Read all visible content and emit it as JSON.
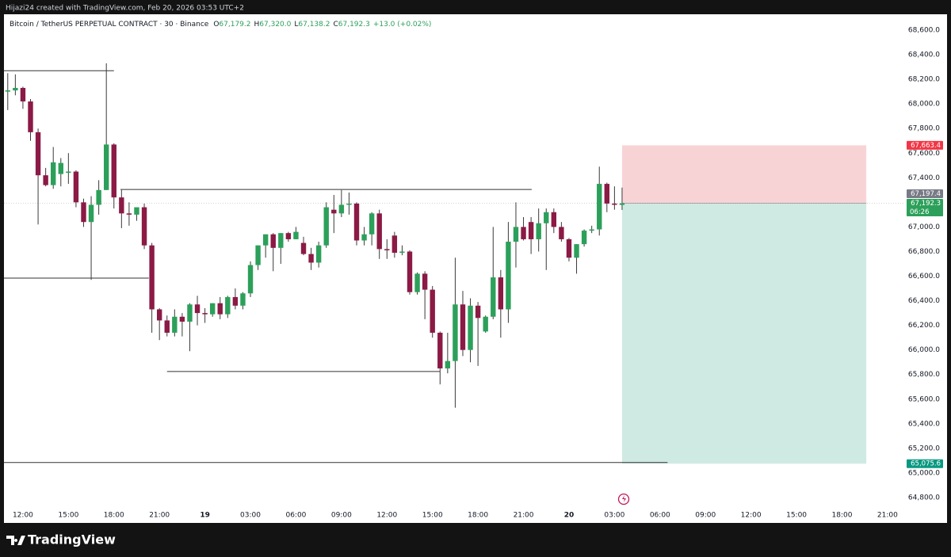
{
  "banner": "Hijazi24 created with TradingView.com, Feb 20, 2026 03:53 UTC+2",
  "footer": "TradingView",
  "chart_data": {
    "type": "candlestick",
    "title": "Bitcoin / TetherUS PERPETUAL CONTRACT · 30 · Binance",
    "ohlc_legend": [
      {
        "key": "O",
        "value": "67,179.2"
      },
      {
        "key": "H",
        "value": "67,320.0"
      },
      {
        "key": "L",
        "value": "67,138.2"
      },
      {
        "key": "C",
        "value": "67,192.3"
      }
    ],
    "change": "+13.0 (+0.02%)",
    "up_color": "#2ca05a",
    "down_color": "#8b1a45",
    "wick_color": "#3a3a3a",
    "x": [
      11,
      11.5,
      12,
      12.5,
      13,
      13.5,
      14,
      14.5,
      15,
      15.5,
      16,
      16.5,
      17,
      17.5,
      18,
      18.5,
      19,
      19.5,
      20,
      20.5,
      21,
      21.5,
      22,
      22.5,
      23,
      23.5,
      24,
      24.5,
      25,
      25.5,
      26,
      26.5,
      27,
      27.5,
      28,
      28.5,
      29,
      29.5,
      30,
      30.5,
      31,
      31.5,
      32,
      32.5,
      33,
      33.5,
      34,
      34.5,
      35,
      35.5,
      36,
      36.5,
      37,
      37.5,
      38,
      38.5,
      39,
      39.5,
      40,
      40.5,
      41,
      41.5,
      42,
      42.5,
      43,
      43.5,
      44,
      44.5,
      45,
      45.5,
      46,
      46.5,
      47,
      47.5,
      48,
      48.5,
      49,
      49.5,
      50,
      50.5,
      51,
      51.5
    ],
    "open": [
      68100,
      68110,
      68130,
      68020,
      67770,
      67420,
      67340,
      67430,
      67440,
      67450,
      67200,
      67040,
      67180,
      67300,
      67670,
      67240,
      67110,
      67100,
      67160,
      66850,
      66330,
      66240,
      66140,
      66270,
      66230,
      66370,
      66300,
      66290,
      66380,
      66290,
      66430,
      66360,
      66460,
      66690,
      66850,
      66940,
      66830,
      66950,
      66900,
      66870,
      66780,
      66710,
      66850,
      67140,
      67110,
      67180,
      67190,
      66890,
      66940,
      67110,
      66820,
      66930,
      66790,
      66800,
      66470,
      66620,
      66490,
      66140,
      65850,
      65910,
      66370,
      66000,
      66360,
      66150,
      66270,
      66590,
      66330,
      66880,
      67000,
      67040,
      66900,
      67030,
      67120,
      67000,
      66900,
      66750,
      66860,
      66970,
      66980,
      67350,
      67190,
      67179.2
    ],
    "high": [
      68250,
      68240,
      68140,
      68040,
      67800,
      67480,
      67650,
      67560,
      67600,
      67460,
      67230,
      67250,
      67380,
      68330,
      67680,
      67300,
      67200,
      67150,
      67190,
      66870,
      66340,
      66280,
      66330,
      66300,
      66380,
      66440,
      66340,
      66380,
      66430,
      66440,
      66500,
      66470,
      66720,
      66850,
      66940,
      66950,
      66950,
      66960,
      67000,
      66920,
      66830,
      66880,
      67200,
      67260,
      67300,
      67280,
      67200,
      67000,
      67120,
      67140,
      66900,
      66960,
      66850,
      66810,
      66630,
      66640,
      66520,
      66150,
      66140,
      66750,
      66480,
      66420,
      66390,
      66280,
      67000,
      66650,
      67040,
      67200,
      67080,
      67080,
      67150,
      67150,
      67150,
      67040,
      66910,
      66860,
      66980,
      67010,
      67490,
      67360,
      67330,
      67320
    ],
    "low": [
      67950,
      68070,
      67960,
      67700,
      67020,
      67330,
      67310,
      67330,
      67350,
      67160,
      67000,
      66570,
      67100,
      67300,
      67150,
      66990,
      67010,
      67050,
      66820,
      66140,
      66080,
      66110,
      66110,
      66110,
      65990,
      66200,
      66220,
      66270,
      66250,
      66260,
      66330,
      66330,
      66430,
      66650,
      66750,
      66640,
      66700,
      66880,
      66900,
      66770,
      66650,
      66670,
      66830,
      66950,
      67080,
      67100,
      66850,
      66850,
      66850,
      66740,
      66740,
      66750,
      66770,
      66450,
      66450,
      66250,
      66100,
      65720,
      65810,
      65530,
      65950,
      65900,
      65870,
      66140,
      66250,
      66100,
      66220,
      66670,
      66890,
      66780,
      66800,
      66650,
      66950,
      66880,
      66720,
      66620,
      66840,
      66950,
      66930,
      67120,
      67140,
      67138.2
    ],
    "close": [
      68110,
      68130,
      68020,
      67770,
      67420,
      67340,
      67525,
      67520,
      67450,
      67200,
      67040,
      67180,
      67300,
      67670,
      67240,
      67110,
      67100,
      67160,
      66850,
      66330,
      66240,
      66140,
      66270,
      66230,
      66370,
      66300,
      66290,
      66380,
      66290,
      66430,
      66360,
      66460,
      66690,
      66850,
      66940,
      66830,
      66950,
      66900,
      66960,
      66780,
      66710,
      66850,
      67160,
      67110,
      67180,
      67190,
      66890,
      66940,
      67110,
      66820,
      66810,
      66790,
      66800,
      66470,
      66620,
      66490,
      66140,
      65850,
      65910,
      66370,
      66000,
      66360,
      66260,
      66270,
      66590,
      66330,
      66880,
      67000,
      66900,
      66900,
      67030,
      67120,
      67000,
      66900,
      66750,
      66860,
      66970,
      66980,
      67350,
      67190,
      67180,
      67192.3
    ],
    "xlim": [
      10.75,
      70.05
    ],
    "xticks": [
      {
        "value": 12,
        "label": "12:00"
      },
      {
        "value": 15,
        "label": "15:00"
      },
      {
        "value": 18,
        "label": "18:00"
      },
      {
        "value": 21,
        "label": "21:00"
      },
      {
        "value": 24,
        "label": "19"
      },
      {
        "value": 27,
        "label": "03:00"
      },
      {
        "value": 30,
        "label": "06:00"
      },
      {
        "value": 33,
        "label": "09:00"
      },
      {
        "value": 36,
        "label": "12:00"
      },
      {
        "value": 39,
        "label": "15:00"
      },
      {
        "value": 42,
        "label": "18:00"
      },
      {
        "value": 45,
        "label": "21:00"
      },
      {
        "value": 48,
        "label": "20"
      },
      {
        "value": 51,
        "label": "03:00"
      },
      {
        "value": 54,
        "label": "06:00"
      },
      {
        "value": 57,
        "label": "09:00"
      },
      {
        "value": 60,
        "label": "12:00"
      },
      {
        "value": 63,
        "label": "15:00"
      },
      {
        "value": 66,
        "label": "18:00"
      },
      {
        "value": 69,
        "label": "21:00"
      }
    ],
    "ylim": [
      64722.7,
      68728.8
    ],
    "yticks": [
      {
        "value": 64800,
        "label": "64,800.0"
      },
      {
        "value": 65000,
        "label": "65,000.0"
      },
      {
        "value": 65200,
        "label": "65,200.0"
      },
      {
        "value": 65400,
        "label": "65,400.0"
      },
      {
        "value": 65600,
        "label": "65,600.0"
      },
      {
        "value": 65800,
        "label": "65,800.0"
      },
      {
        "value": 66000,
        "label": "66,000.0"
      },
      {
        "value": 66200,
        "label": "66,200.0"
      },
      {
        "value": 66400,
        "label": "66,400.0"
      },
      {
        "value": 66600,
        "label": "66,600.0"
      },
      {
        "value": 66800,
        "label": "66,800.0"
      },
      {
        "value": 67000,
        "label": "67,000.0"
      },
      {
        "value": 67200,
        "label": "67,200.0"
      },
      {
        "value": 67400,
        "label": "67,400.0"
      },
      {
        "value": 67600,
        "label": "67,600.0"
      },
      {
        "value": 67800,
        "label": "67,800.0"
      },
      {
        "value": 68000,
        "label": "68,000.0"
      },
      {
        "value": 68200,
        "label": "68,200.0"
      },
      {
        "value": 68400,
        "label": "68,400.0"
      },
      {
        "value": 68600,
        "label": "68,600.0"
      }
    ],
    "levels": [
      {
        "price": 68270,
        "x": [
          10.75,
          18
        ]
      },
      {
        "price": 67305,
        "x": [
          18.43,
          45.54
        ]
      },
      {
        "price": 66584,
        "x": [
          10.75,
          20.3
        ]
      },
      {
        "price": 65825,
        "x": [
          21.5,
          39.5
        ]
      },
      {
        "price": 65085,
        "x": [
          10.75,
          54.5
        ]
      }
    ],
    "position": {
      "entry": 67192.3,
      "stop": 67663.4,
      "target": 65075.6,
      "x": [
        51.5,
        67.6
      ],
      "stop_color": "#f8d3d6",
      "target_color": "#cfeae3"
    },
    "price_badges": [
      {
        "value": 67663.4,
        "label": "67,663.4",
        "color": "#f23645"
      },
      {
        "value": 67197.4,
        "label": "67,197.4",
        "color": "#787b86"
      },
      {
        "value": 67192.3,
        "label": "67,192.3",
        "color": "#2ca05a",
        "countdown": "06:26"
      },
      {
        "value": 65075.6,
        "label": "65,075.6",
        "color": "#089981"
      }
    ]
  }
}
